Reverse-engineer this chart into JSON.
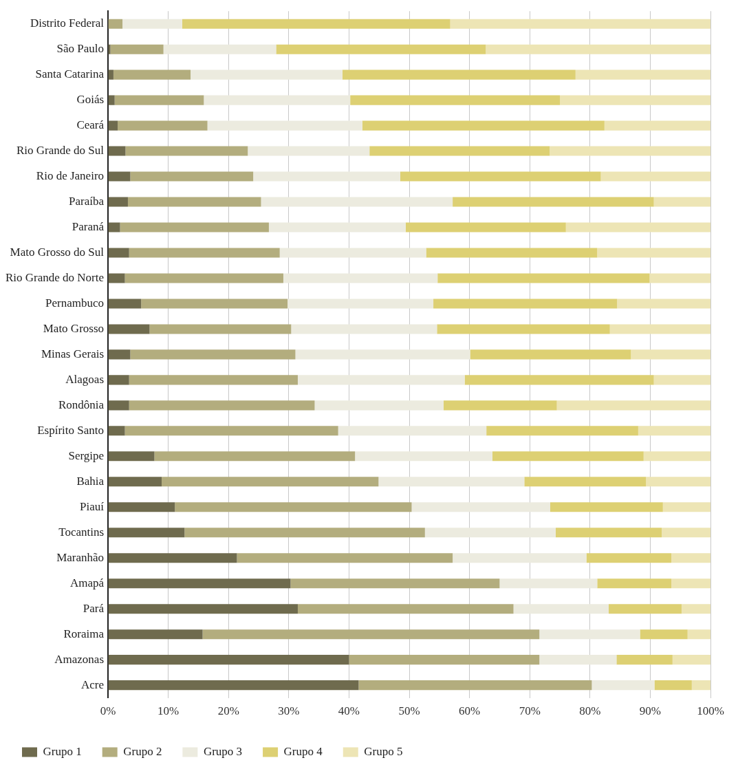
{
  "chart_data": {
    "type": "bar",
    "orientation": "horizontal",
    "stacked": true,
    "categories": [
      "Distrito Federal",
      "São Paulo",
      "Santa Catarina",
      "Goiás",
      "Ceará",
      "Rio Grande do Sul",
      "Rio de Janeiro",
      "Paraíba",
      "Paraná",
      "Mato Grosso do Sul",
      "Rio Grande do Norte",
      "Pernambuco",
      "Mato Grosso",
      "Minas Gerais",
      "Alagoas",
      "Rondônia",
      "Espírito Santo",
      "Sergipe",
      "Bahia",
      "Piauí",
      "Tocantins",
      "Maranhão",
      "Amapá",
      "Pará",
      "Roraima",
      "Amazonas",
      "Acre"
    ],
    "series": [
      {
        "name": "Grupo 1",
        "color": "#6f6b4e",
        "values": [
          0,
          0.4,
          0.9,
          1.1,
          1.6,
          2.9,
          3.7,
          3.3,
          2.0,
          3.5,
          2.8,
          5.5,
          6.9,
          3.7,
          3.5,
          3.5,
          2.8,
          7.7,
          8.9,
          11.1,
          12.7,
          21.4,
          30.3,
          31.5,
          15.7,
          40.0,
          41.6
        ]
      },
      {
        "name": "Grupo 2",
        "color": "#b3ad7e",
        "values": [
          2.4,
          8.8,
          12.8,
          14.8,
          14.9,
          20.3,
          20.4,
          22.1,
          24.7,
          25.0,
          26.3,
          24.3,
          23.5,
          27.4,
          28.0,
          30.8,
          35.4,
          33.3,
          36.0,
          39.3,
          39.9,
          35.8,
          34.7,
          35.8,
          55.9,
          31.6,
          38.7
        ]
      },
      {
        "name": "Grupo 3",
        "color": "#ecebdf",
        "values": [
          9.9,
          18.7,
          25.2,
          24.3,
          25.7,
          20.2,
          24.4,
          31.8,
          22.7,
          24.3,
          25.6,
          24.2,
          24.2,
          29.0,
          27.7,
          21.4,
          24.6,
          22.8,
          24.2,
          23.0,
          21.7,
          22.2,
          16.2,
          15.8,
          16.7,
          12.8,
          10.4
        ]
      },
      {
        "name": "Grupo 4",
        "color": "#ddd073",
        "values": [
          44.5,
          34.8,
          38.7,
          34.8,
          40.2,
          29.9,
          33.3,
          33.4,
          26.6,
          28.4,
          35.2,
          30.5,
          28.7,
          26.7,
          31.4,
          18.8,
          25.2,
          25.1,
          20.2,
          18.7,
          17.6,
          14.1,
          12.3,
          12.1,
          7.9,
          9.3,
          6.2
        ]
      },
      {
        "name": "Grupo 5",
        "color": "#ede5b5",
        "values": [
          43.2,
          37.3,
          22.4,
          25.0,
          17.6,
          26.7,
          18.2,
          9.4,
          24.0,
          18.8,
          10.1,
          15.5,
          16.7,
          13.2,
          9.4,
          25.5,
          12.0,
          11.1,
          10.7,
          7.9,
          8.1,
          6.5,
          6.5,
          4.8,
          3.8,
          6.3,
          3.1
        ]
      }
    ],
    "xlim": [
      0,
      100
    ],
    "xticks": [
      {
        "value": 0,
        "label": "0%"
      },
      {
        "value": 10,
        "label": "10%"
      },
      {
        "value": 20,
        "label": "20%"
      },
      {
        "value": 30,
        "label": "30%"
      },
      {
        "value": 40,
        "label": "40%"
      },
      {
        "value": 50,
        "label": "50%"
      },
      {
        "value": 60,
        "label": "60%"
      },
      {
        "value": 70,
        "label": "70%"
      },
      {
        "value": 80,
        "label": "80%"
      },
      {
        "value": 90,
        "label": "90%"
      },
      {
        "value": 100,
        "label": "100%"
      }
    ],
    "grid": "x",
    "legend": "bottom"
  }
}
